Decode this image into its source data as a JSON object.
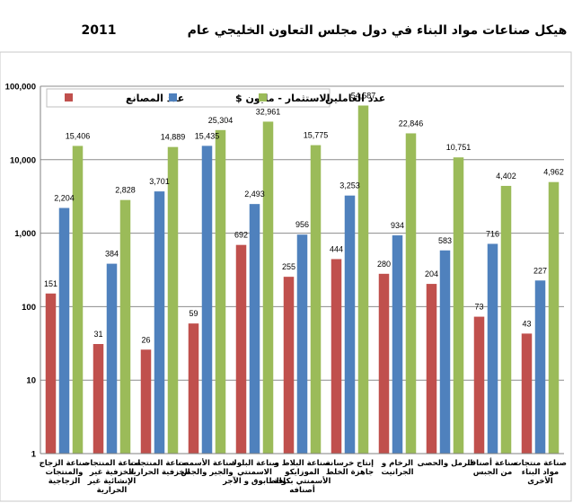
{
  "chart_data": {
    "type": "bar",
    "title_text": "هيكل صناعات مواد البناء في دول مجلس التعاون الخليجي   عام",
    "title_year": "2011",
    "yscale": "log",
    "ylim": [
      1,
      100000
    ],
    "yticks": [
      "1",
      "10",
      "100",
      "1,000",
      "10,000",
      "100,000"
    ],
    "grid": true,
    "legend_position": "top",
    "categories": [
      [
        "صناعة الزجاج",
        "والمنتجات",
        "الزجاجية"
      ],
      [
        "صناعة المنتجات",
        "الخزفية غير",
        "الإنشائية غير",
        "الحرارية"
      ],
      [
        "صناعة المنتجات",
        "الخزفية الحرارية"
      ],
      [
        "صناعة الأسمنت",
        "والجير والجص"
      ],
      [
        "صناعة البلوك",
        "الاسمنتي",
        "والطابوق و الآجر"
      ],
      [
        "صناعة البلاط و",
        "الموزايكو",
        "الأسمنتي بكافة",
        "أصنافه"
      ],
      [
        "إنتاج خرسانة",
        "جاهزة الخلط"
      ],
      [
        "الرخام و",
        "الجرانيت"
      ],
      [
        "الرمل والحصى"
      ],
      [
        "صناعة أصناف",
        "من الجبس"
      ],
      [
        "صناعة منتجات",
        "مواد البناء",
        "الأخرى"
      ]
    ],
    "series": [
      {
        "name": "عدد المصانع",
        "color": "#c0504d",
        "values": [
          151,
          31,
          26,
          59,
          692,
          255,
          444,
          280,
          204,
          73,
          43
        ],
        "labels": [
          "151",
          "31",
          "26",
          "59",
          "692",
          "255",
          "444",
          "280",
          "204",
          "73",
          "43"
        ]
      },
      {
        "name": "الاستثمار - مليون $",
        "color": "#4f81bd",
        "values": [
          2204,
          384,
          3701,
          15435,
          2493,
          956,
          3253,
          934,
          583,
          716,
          227
        ],
        "labels": [
          "2,204",
          "384",
          "3,701",
          "15,435",
          "2,493",
          "956",
          "3,253",
          "934",
          "583",
          "716",
          "227"
        ]
      },
      {
        "name": "عدد العاملين",
        "color": "#9bbb59",
        "values": [
          15406,
          2828,
          14889,
          25304,
          32961,
          15775,
          54587,
          22846,
          10751,
          4402,
          4962
        ],
        "labels": [
          "15,406",
          "2,828",
          "14,889",
          "25,304",
          "32,961",
          "15,775",
          "54,587",
          "22,846",
          "10,751",
          "4,402",
          "4,962"
        ]
      }
    ]
  }
}
